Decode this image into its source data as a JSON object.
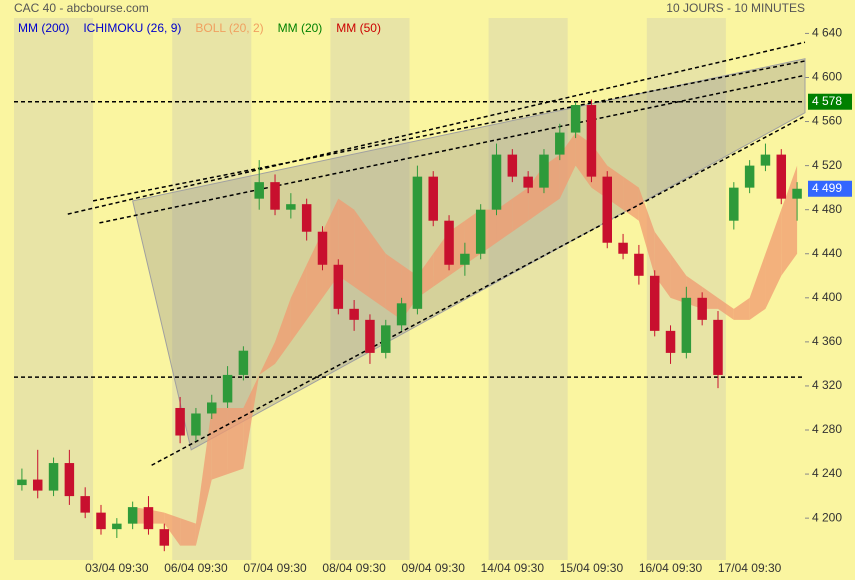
{
  "chart_data": {
    "type": "candlestick",
    "title": "CAC 40 - abcbourse.com",
    "subtitle": "10 JOURS - 10 MINUTES",
    "legend": [
      {
        "name": "MM (200)",
        "color": "#0000cc"
      },
      {
        "name": "ICHIMOKU (26, 9)",
        "color": "#0000cc"
      },
      {
        "name": "BOLL (20, 2)",
        "color": "#f0a060"
      },
      {
        "name": "MM (20)",
        "color": "#008000"
      },
      {
        "name": "MM (50)",
        "color": "#cc0000"
      }
    ],
    "categories": [
      null,
      null,
      null,
      null,
      null,
      null,
      "03/04 09:30",
      null,
      null,
      null,
      null,
      "06/04 09:30",
      null,
      null,
      null,
      null,
      "07/04 09:30",
      null,
      null,
      null,
      null,
      "08/04 09:30",
      null,
      null,
      null,
      null,
      "09/04 09:30",
      null,
      null,
      null,
      null,
      "14/04 09:30",
      null,
      null,
      null,
      null,
      "15/04 09:30",
      null,
      null,
      null,
      null,
      "16/04 09:30",
      null,
      null,
      null,
      null,
      "17/04 09:30",
      null,
      null,
      null
    ],
    "open": [
      4230,
      4235,
      4225,
      4250,
      4220,
      4205,
      4190,
      4195,
      4210,
      4190,
      4300,
      4275,
      4295,
      4305,
      4330,
      4490,
      4505,
      4480,
      4485,
      4460,
      4430,
      4390,
      4380,
      4350,
      4375,
      4390,
      4510,
      4470,
      4430,
      4440,
      4480,
      4530,
      4510,
      4500,
      4530,
      4550,
      4575,
      4510,
      4450,
      4440,
      4420,
      4370,
      4350,
      4400,
      4380,
      4470,
      4500,
      4520,
      4530,
      4490
    ],
    "high": [
      4245,
      4262,
      4255,
      4262,
      4228,
      4212,
      4200,
      4215,
      4220,
      4195,
      4310,
      4300,
      4312,
      4338,
      4356,
      4525,
      4512,
      4495,
      4490,
      4465,
      4435,
      4398,
      4385,
      4380,
      4400,
      4520,
      4515,
      4475,
      4450,
      4485,
      4540,
      4535,
      4515,
      4535,
      4558,
      4578,
      4580,
      4515,
      4458,
      4448,
      4425,
      4375,
      4410,
      4405,
      4388,
      4505,
      4525,
      4540,
      4535,
      4505
    ],
    "low": [
      4225,
      4218,
      4220,
      4212,
      4200,
      4185,
      4182,
      4190,
      4185,
      4170,
      4268,
      4270,
      4290,
      4300,
      4325,
      4480,
      4475,
      4472,
      4452,
      4425,
      4385,
      4370,
      4340,
      4345,
      4370,
      4385,
      4465,
      4425,
      4420,
      4435,
      4475,
      4505,
      4495,
      4495,
      4525,
      4545,
      4505,
      4445,
      4435,
      4412,
      4365,
      4340,
      4345,
      4375,
      4318,
      4462,
      4495,
      4515,
      4485,
      4470
    ],
    "close": [
      4235,
      4225,
      4250,
      4220,
      4205,
      4190,
      4195,
      4210,
      4190,
      4175,
      4275,
      4295,
      4305,
      4330,
      4352,
      4505,
      4480,
      4485,
      4460,
      4430,
      4390,
      4380,
      4350,
      4375,
      4395,
      4510,
      4470,
      4430,
      4440,
      4480,
      4530,
      4510,
      4500,
      4530,
      4550,
      4575,
      4510,
      4450,
      4440,
      4420,
      4370,
      4350,
      4400,
      4380,
      4330,
      4500,
      4520,
      4530,
      4490,
      4499
    ],
    "up_color": "#2e9a3a",
    "down_color": "#c8102e",
    "span_a": [
      null,
      null,
      null,
      null,
      null,
      null,
      null,
      4210,
      4208,
      4205,
      4200,
      4195,
      4300,
      4300,
      4300,
      4330,
      4360,
      4400,
      4430,
      4460,
      4490,
      4480,
      4460,
      4440,
      4430,
      4420,
      4440,
      4460,
      4470,
      4480,
      4480,
      4490,
      4500,
      4520,
      4530,
      4550,
      4540,
      4520,
      4510,
      4500,
      4460,
      4440,
      4420,
      4410,
      4400,
      4390,
      4400,
      4440,
      4480,
      4520
    ],
    "span_b": [
      null,
      null,
      null,
      null,
      null,
      null,
      null,
      4195,
      4195,
      4195,
      4175,
      4175,
      4235,
      4240,
      4245,
      4330,
      4340,
      4360,
      4380,
      4400,
      4420,
      4410,
      4400,
      4390,
      4380,
      4400,
      4410,
      4420,
      4430,
      4440,
      4450,
      4460,
      4470,
      4480,
      4490,
      4520,
      4500,
      4490,
      4480,
      4470,
      4420,
      4400,
      4395,
      4390,
      4390,
      4380,
      4380,
      4390,
      4420,
      4440
    ],
    "cloud_color": "#f09a70",
    "wedge": {
      "x": [
        7,
        10.7,
        49.5,
        49.5
      ],
      "y": [
        4488,
        4262,
        4568,
        4617
      ]
    },
    "trend_lines": [
      {
        "x": [
          2.9,
          49.5
        ],
        "y": [
          4476,
          4632
        ]
      },
      {
        "x": [
          4.5,
          49.5
        ],
        "y": [
          4488,
          4615
        ]
      },
      {
        "x": [
          4.9,
          49.5
        ],
        "y": [
          4468,
          4602
        ]
      },
      {
        "x": [
          8.2,
          49.5
        ],
        "y": [
          4248,
          4565
        ]
      }
    ],
    "levels": [
      4578,
      4328
    ],
    "price_markers": [
      {
        "value": 4578,
        "label": "4 578",
        "color": "#008000"
      },
      {
        "value": 4499,
        "label": "4 499",
        "color": "#3366ff"
      }
    ],
    "ylim": [
      4162,
      4654
    ],
    "yticks": [
      {
        "value": 4200,
        "label": "4 200"
      },
      {
        "value": 4240,
        "label": "4 240"
      },
      {
        "value": 4280,
        "label": "4 280"
      },
      {
        "value": 4320,
        "label": "4 320"
      },
      {
        "value": 4360,
        "label": "4 360"
      },
      {
        "value": 4400,
        "label": "4 400"
      },
      {
        "value": 4440,
        "label": "4 440"
      },
      {
        "value": 4480,
        "label": "4 480"
      },
      {
        "value": 4520,
        "label": "4 520"
      },
      {
        "value": 4560,
        "label": "4 560"
      },
      {
        "value": 4600,
        "label": "4 600"
      },
      {
        "value": 4640,
        "label": "4 640"
      }
    ]
  }
}
